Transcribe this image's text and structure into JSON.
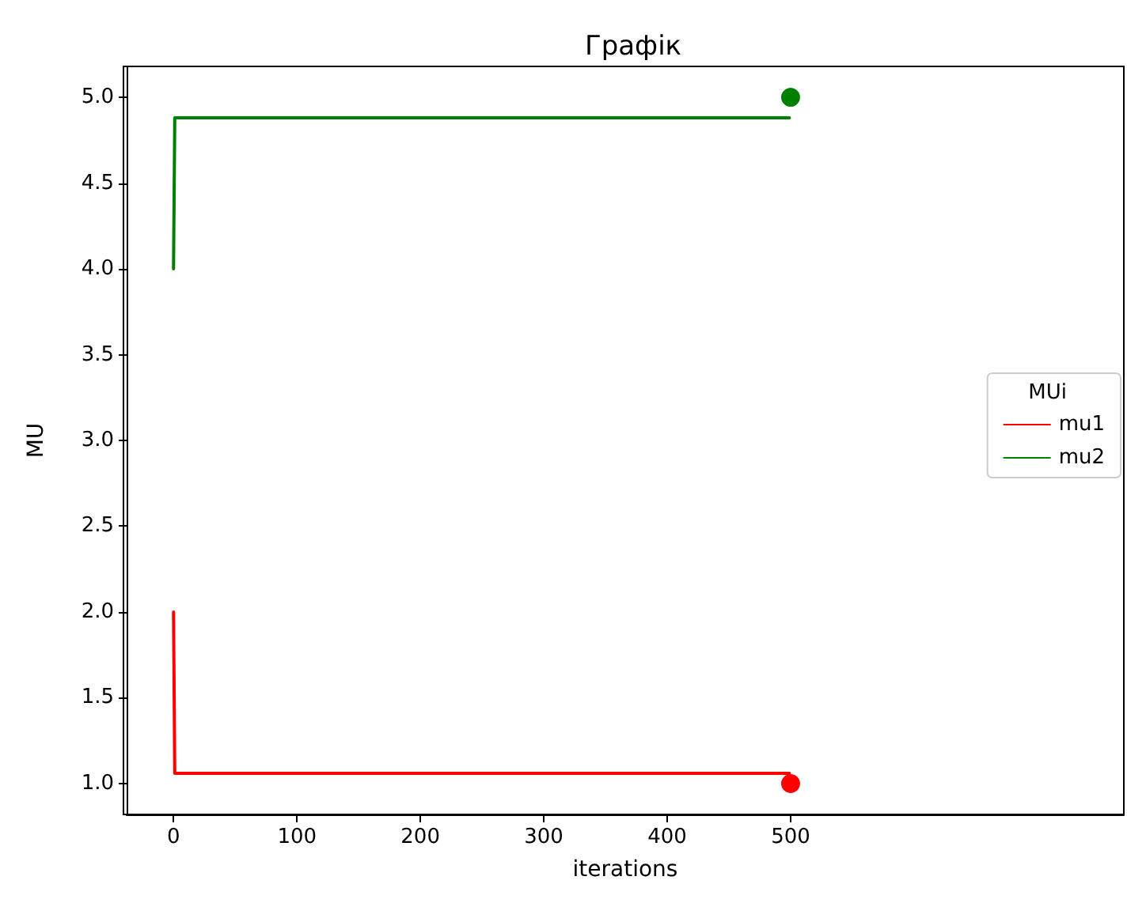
{
  "chart_data": {
    "type": "line",
    "title": "Графік",
    "xlabel": "iterations",
    "ylabel": "MU",
    "legend_title": "MUi",
    "legend": "right",
    "grid": false,
    "line_style": "solid",
    "marker": "none",
    "xlim": [
      -38,
      770
    ],
    "xticks": [
      0,
      100,
      200,
      300,
      400,
      500
    ],
    "ylim": [
      0.82,
      5.18
    ],
    "yticks": [
      {
        "value": 1,
        "label": "1.0"
      },
      1.5,
      {
        "value": 2,
        "label": "2.0"
      },
      2.5,
      {
        "value": 3,
        "label": "3.0"
      },
      3.5,
      {
        "value": 4,
        "label": "4.0"
      },
      4.5,
      {
        "value": 5,
        "label": "5.0"
      }
    ],
    "series": [
      {
        "name": "mu1",
        "color": "#ff0000",
        "x": [
          0,
          1,
          499
        ],
        "values": [
          2.0,
          1.06,
          1.06
        ]
      },
      {
        "name": "mu2",
        "color": "#008000",
        "x": [
          0,
          1,
          499
        ],
        "values": [
          4.0,
          4.88,
          4.88
        ]
      },
      {
        "type": "scatter",
        "marker": "circle",
        "color": "#ff0000",
        "x": [
          500
        ],
        "values": [
          1.0
        ]
      },
      {
        "type": "scatter",
        "marker": "circle",
        "color": "#008000",
        "x": [
          500
        ],
        "values": [
          5.0
        ]
      }
    ]
  }
}
